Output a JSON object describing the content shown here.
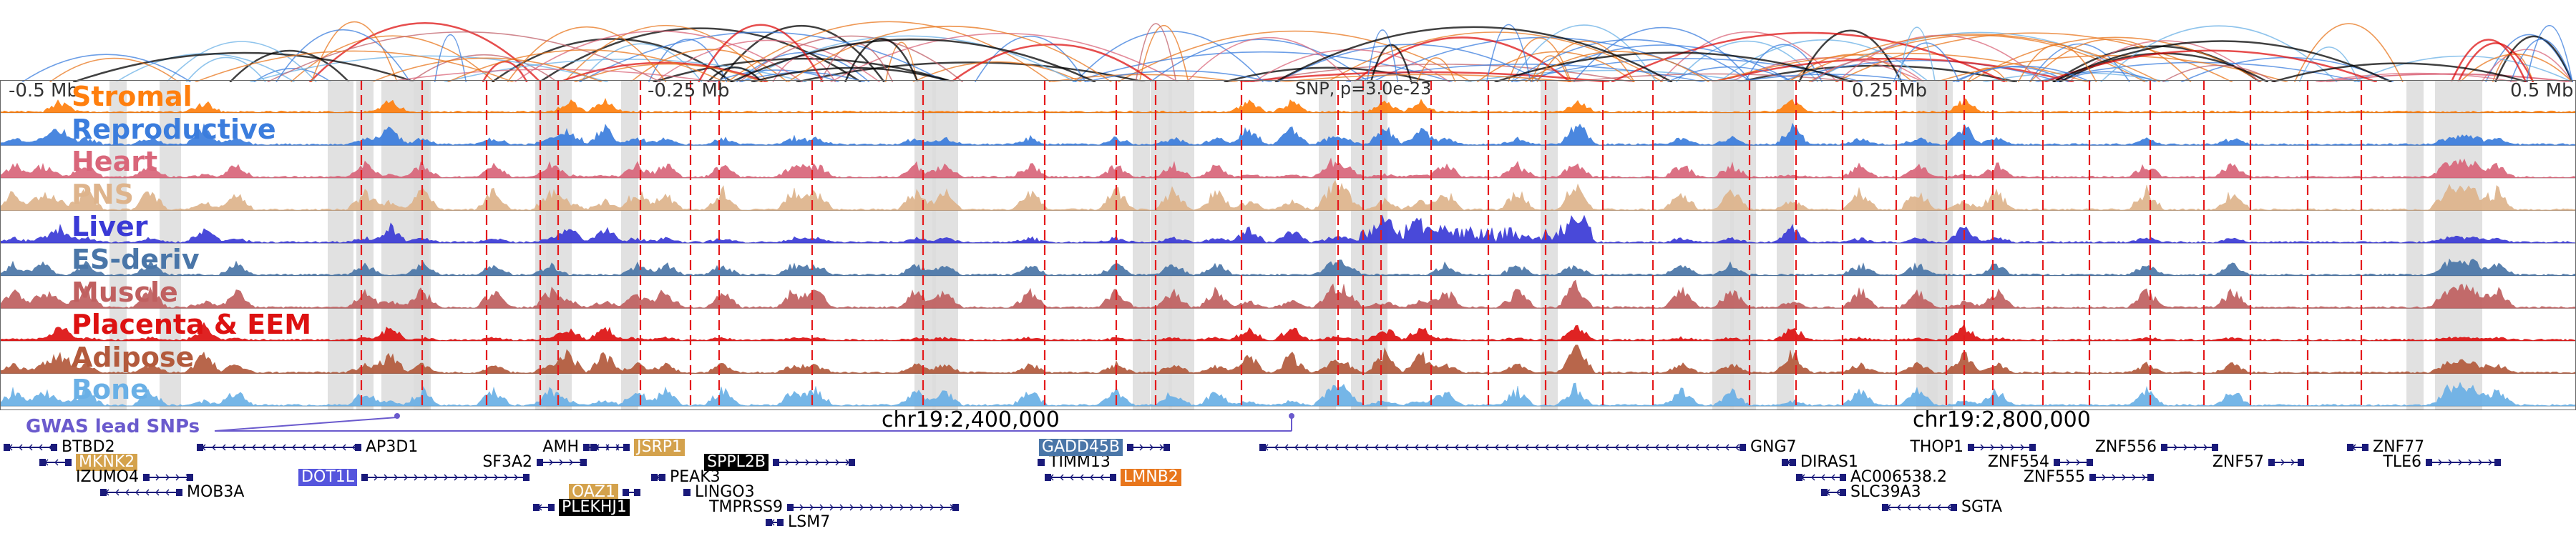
{
  "colors": {
    "Stromal": "#ff7f0e",
    "Reproductive": "#3b7ddd",
    "Heart": "#d9667a",
    "PNS": "#deb48c",
    "Liver": "#3a3ad6",
    "ES-deriv": "#4a76a8",
    "Muscle": "#c06060",
    "Placenta & EEM": "#dd1111",
    "Adipose": "#b35a3c",
    "Bone": "#6ab0e6",
    "gwas": "#6a5acd",
    "gene": "#1a1a7a",
    "highlight_column": "#dcdcdc",
    "marker_line": "#e41a1c"
  },
  "tracks": [
    {
      "label": "Stromal"
    },
    {
      "label": "Reproductive"
    },
    {
      "label": "Heart"
    },
    {
      "label": "PNS"
    },
    {
      "label": "Liver"
    },
    {
      "label": "ES-deriv"
    },
    {
      "label": "Muscle"
    },
    {
      "label": "Placenta & EEM"
    },
    {
      "label": "Adipose"
    },
    {
      "label": "Bone"
    }
  ],
  "ruler": {
    "left": "-0.5 Mb",
    "mid_left": "-0.25 Mb",
    "mid_right": "0.25 Mb",
    "right": "0.5 Mb"
  },
  "snp_annotation": "SNP, p=3.0e-23",
  "gwas": {
    "title": "GWAS lead SNPs",
    "coord_left": "chr19:2,400,000",
    "coord_right": "chr19:2,800,000"
  },
  "genes": [
    {
      "name": "BTBD2",
      "strand": "-",
      "highlight": ""
    },
    {
      "name": "MKNK2",
      "strand": "-",
      "highlight": "#d4a24c"
    },
    {
      "name": "IZUMO4",
      "strand": "+",
      "highlight": ""
    },
    {
      "name": "MOB3A",
      "strand": "-",
      "highlight": ""
    },
    {
      "name": "AP3D1",
      "strand": "-",
      "highlight": ""
    },
    {
      "name": "DOT1L",
      "strand": "+",
      "highlight": "#5555dd"
    },
    {
      "name": "SF3A2",
      "strand": "+",
      "highlight": ""
    },
    {
      "name": "AMH",
      "strand": "+",
      "highlight": ""
    },
    {
      "name": "JSRP1",
      "strand": "-",
      "highlight": "#d4a24c"
    },
    {
      "name": "OAZ1",
      "strand": "+",
      "highlight": "#d4a24c"
    },
    {
      "name": "PLEKHJ1",
      "strand": "-",
      "highlight": "#000000"
    },
    {
      "name": "SPPL2B",
      "strand": "+",
      "highlight": "#000000"
    },
    {
      "name": "PEAK3",
      "strand": "-",
      "highlight": ""
    },
    {
      "name": "LINGO3",
      "strand": "-",
      "highlight": ""
    },
    {
      "name": "TMPRSS9",
      "strand": "+",
      "highlight": ""
    },
    {
      "name": "LSM7",
      "strand": "-",
      "highlight": ""
    },
    {
      "name": "TIMM13",
      "strand": "-",
      "highlight": ""
    },
    {
      "name": "GADD45B",
      "strand": "+",
      "highlight": "#4a76a8"
    },
    {
      "name": "LMNB2",
      "strand": "-",
      "highlight": "#e8761c"
    },
    {
      "name": "GNG7",
      "strand": "-",
      "highlight": ""
    },
    {
      "name": "DIRAS1",
      "strand": "-",
      "highlight": ""
    },
    {
      "name": "AC006538.2",
      "strand": "-",
      "highlight": ""
    },
    {
      "name": "SLC39A3",
      "strand": "-",
      "highlight": ""
    },
    {
      "name": "SGTA",
      "strand": "-",
      "highlight": ""
    },
    {
      "name": "THOP1",
      "strand": "+",
      "highlight": ""
    },
    {
      "name": "ZNF554",
      "strand": "+",
      "highlight": ""
    },
    {
      "name": "ZNF555",
      "strand": "+",
      "highlight": ""
    },
    {
      "name": "ZNF556",
      "strand": "+",
      "highlight": ""
    },
    {
      "name": "ZNF57",
      "strand": "+",
      "highlight": ""
    },
    {
      "name": "ZNF77",
      "strand": "-",
      "highlight": ""
    },
    {
      "name": "TLE6",
      "strand": "+",
      "highlight": ""
    }
  ]
}
